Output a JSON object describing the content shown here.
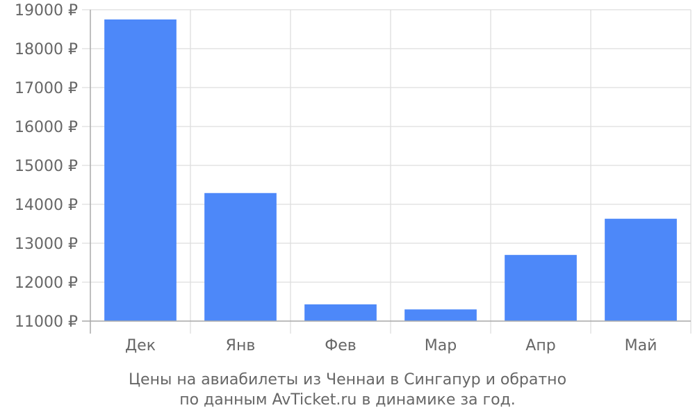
{
  "chart_data": {
    "type": "bar",
    "title": "",
    "xlabel": "",
    "ylabel": "",
    "categories": [
      "Дек",
      "Янв",
      "Фев",
      "Мар",
      "Апр",
      "Май"
    ],
    "values": [
      18750,
      14290,
      11430,
      11300,
      12700,
      13630
    ],
    "ylim": [
      11000,
      19000
    ],
    "yticks": [
      11000,
      12000,
      13000,
      14000,
      15000,
      16000,
      17000,
      18000,
      19000
    ],
    "ytick_labels": [
      "11000 ₽",
      "12000 ₽",
      "13000 ₽",
      "14000 ₽",
      "15000 ₽",
      "16000 ₽",
      "17000 ₽",
      "18000 ₽",
      "19000 ₽"
    ],
    "grid": true,
    "legend": "none",
    "bar_color": "#4d88f9"
  },
  "caption": {
    "line1": "Цены на авиабилеты из Ченнаи в Сингапур и обратно",
    "line2": "по данным AvTicket.ru в динамике за год."
  }
}
